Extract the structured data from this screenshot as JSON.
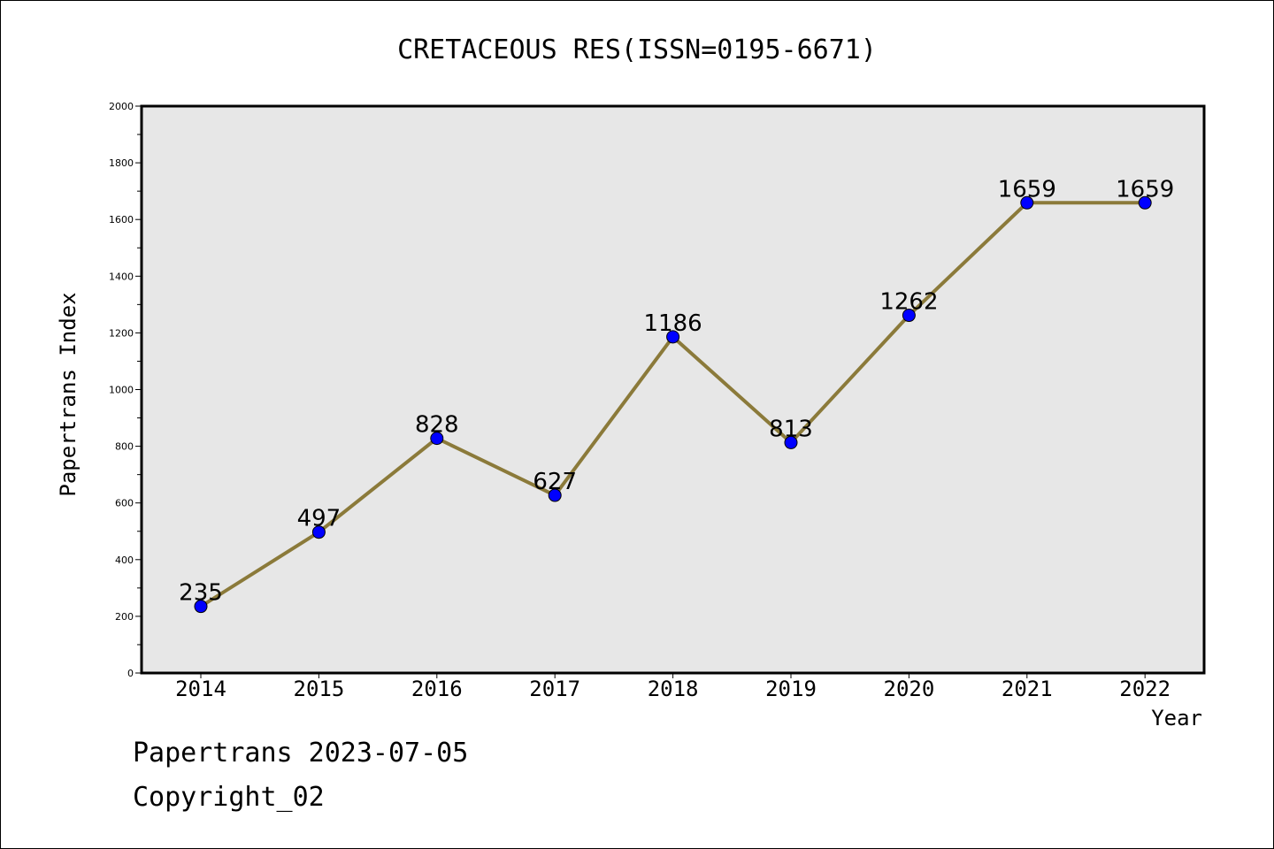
{
  "chart_data": {
    "type": "line",
    "title": "CRETACEOUS RES(ISSN=0195-6671)",
    "xlabel": "Year",
    "ylabel": "Papertrans Index",
    "categories": [
      "2014",
      "2015",
      "2016",
      "2017",
      "2018",
      "2019",
      "2020",
      "2021",
      "2022"
    ],
    "values": [
      235,
      497,
      828,
      627,
      1186,
      813,
      1262,
      1659,
      1659
    ],
    "data_labels": [
      "235",
      "497",
      "828",
      "627",
      "1186",
      "813",
      "1262",
      "1659",
      "1659"
    ],
    "ylim": [
      0,
      2000
    ],
    "yticks": [
      0,
      200,
      400,
      600,
      800,
      1000,
      1200,
      1400,
      1600,
      1800,
      2000
    ],
    "grid": false,
    "colors": {
      "line": "#8b7a3a",
      "marker": "#0000ff",
      "plot_background": "#e7e7e7"
    }
  },
  "footer": {
    "line1": "Papertrans 2023-07-05",
    "line2": "Copyright_02"
  }
}
